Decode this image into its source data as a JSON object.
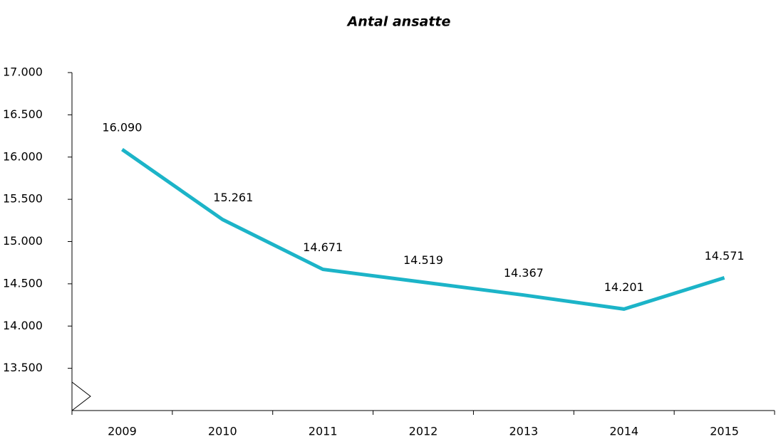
{
  "chart_data": {
    "type": "line",
    "title": "Antal ansatte",
    "categories": [
      "2009",
      "2010",
      "2011",
      "2012",
      "2013",
      "2014",
      "2015"
    ],
    "values": [
      16090,
      15261,
      14671,
      14519,
      14367,
      14201,
      14571
    ],
    "value_labels": [
      "16.090",
      "15.261",
      "14.671",
      "14.519",
      "14.367",
      "14.201",
      "14.571"
    ],
    "color": "#1cb4c8",
    "ylim": [
      13000,
      17000
    ],
    "yticks": [
      {
        "value": 13500,
        "label": "13.500"
      },
      {
        "value": 14000,
        "label": "14.000"
      },
      {
        "value": 14500,
        "label": "14.500"
      },
      {
        "value": 15000,
        "label": "15.000"
      },
      {
        "value": 15500,
        "label": "15.500"
      },
      {
        "value": 16000,
        "label": "16.000"
      },
      {
        "value": 16500,
        "label": "16.500"
      },
      {
        "value": 17000,
        "label": "17.000"
      }
    ],
    "grid": false
  }
}
